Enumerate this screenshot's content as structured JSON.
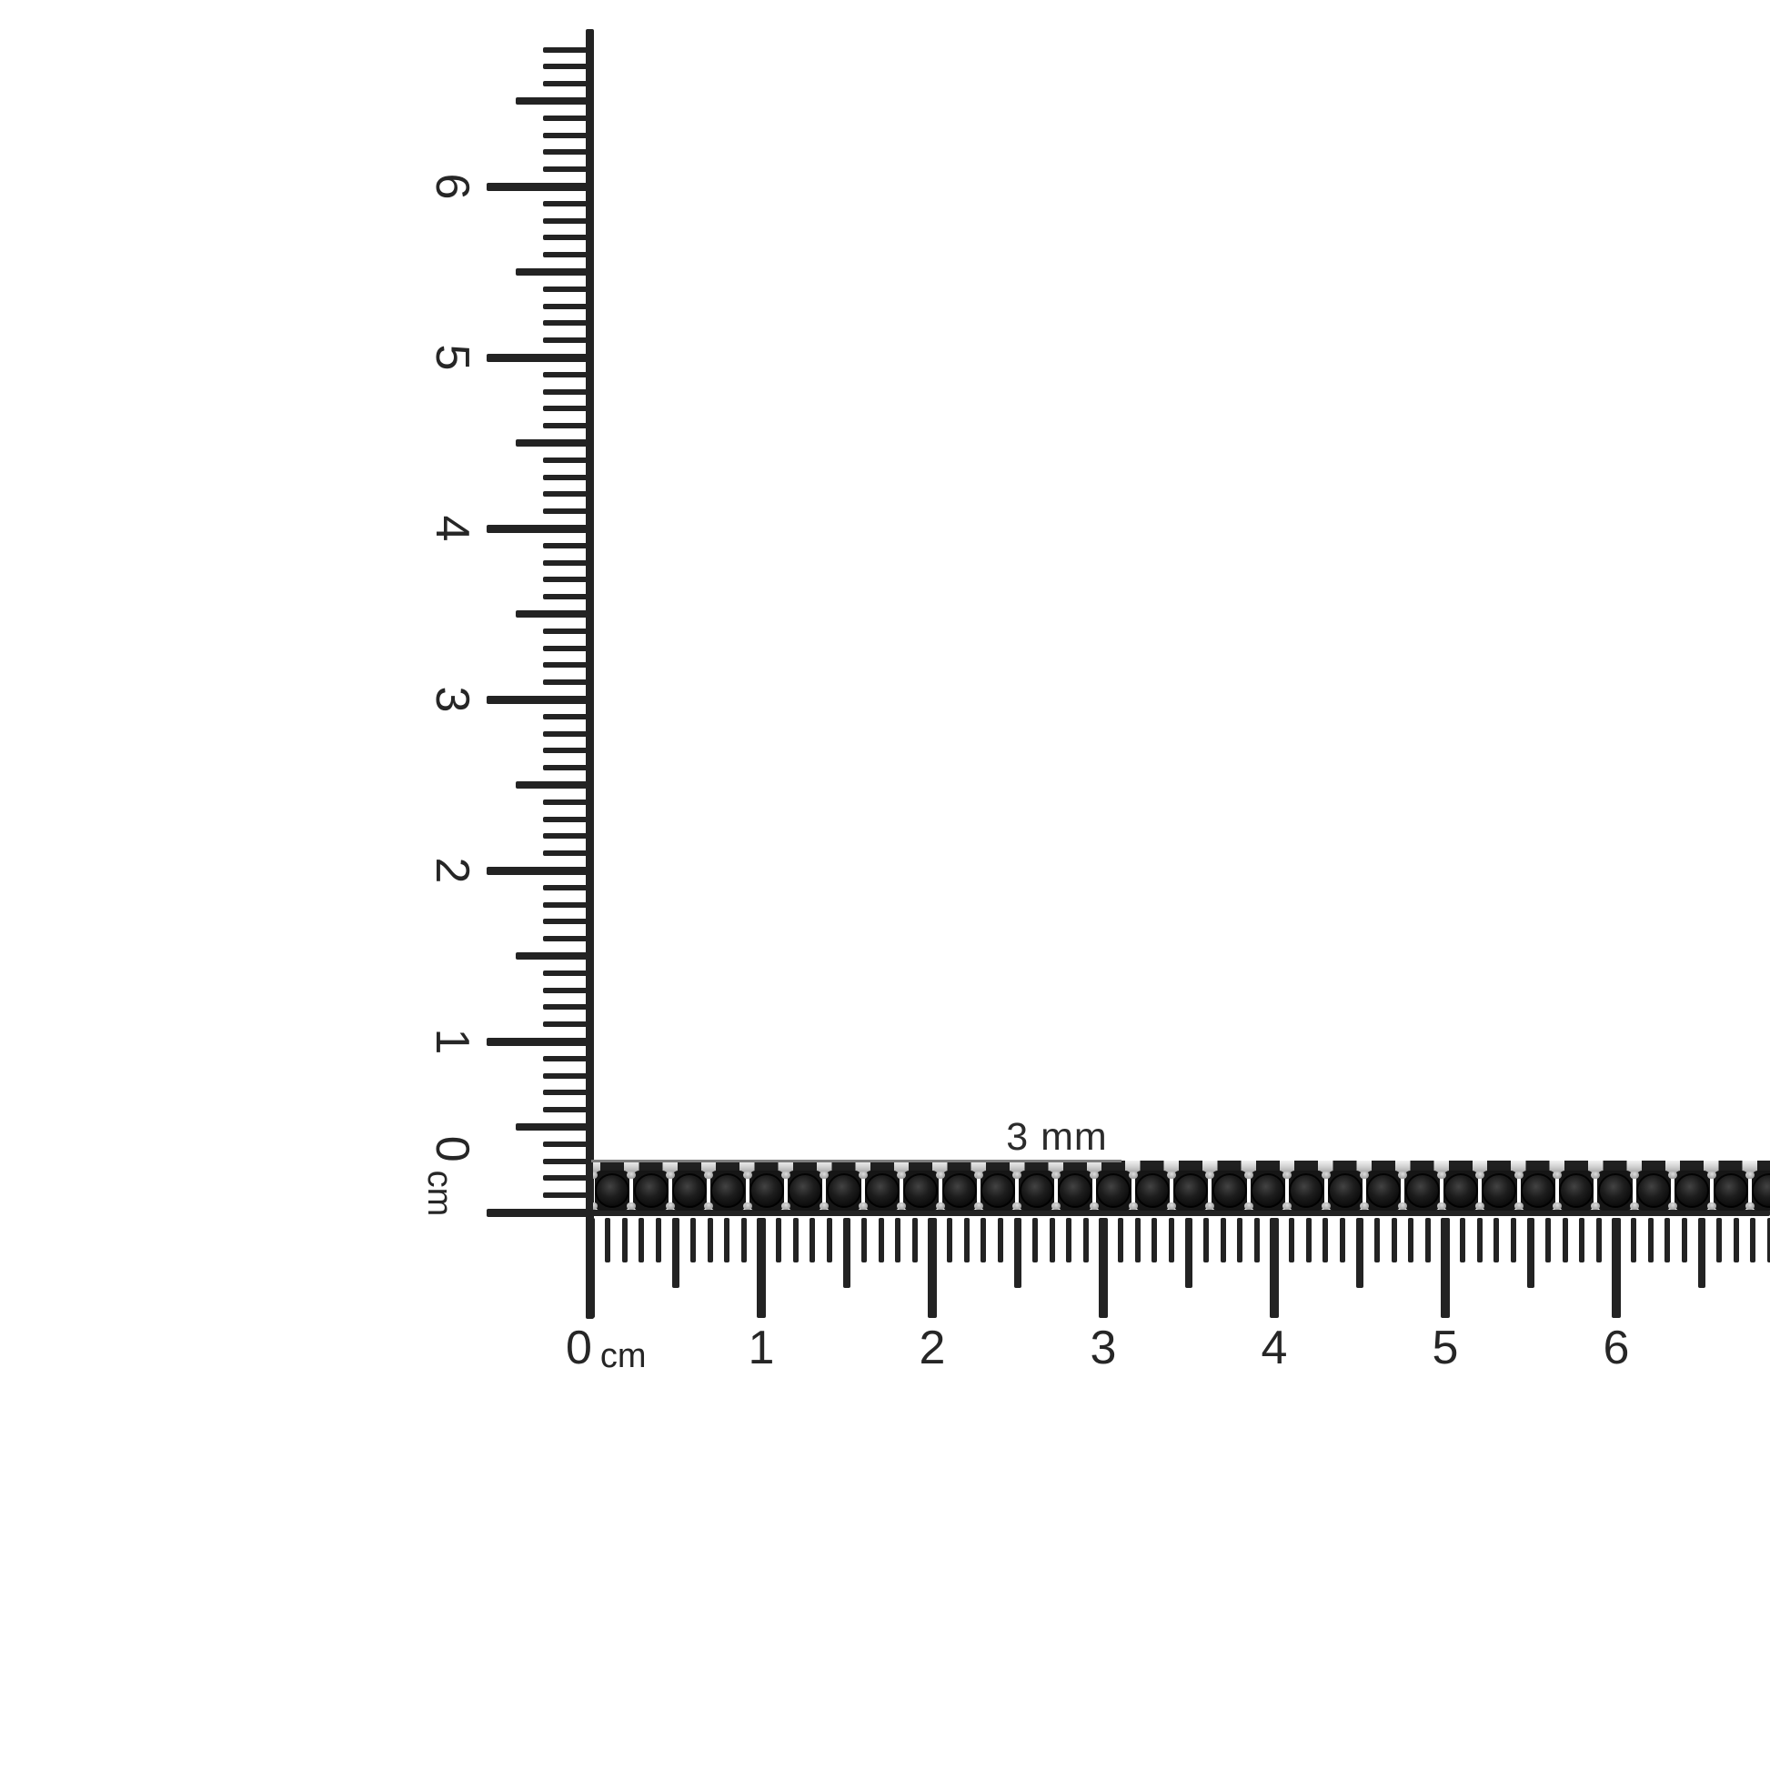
{
  "page": {
    "background_color": "#ffffff"
  },
  "size_label": {
    "text": "3 mm"
  },
  "horizontal_ruler": {
    "unit": "cm",
    "labels": [
      "0",
      "1",
      "2",
      "3",
      "4",
      "5",
      "6"
    ],
    "ink_color": "#232323"
  },
  "vertical_ruler": {
    "unit": "cm",
    "labels": [
      "0",
      "1",
      "2",
      "3",
      "4",
      "5",
      "6"
    ],
    "ink_color": "#232323"
  },
  "bracelet": {
    "stone_count": 31,
    "stone_color": "#0a0a0a",
    "stone_highlight": "#434343",
    "setting_color": "#161616",
    "metal_color": "#cfcfcf",
    "prong_color": "#a3a3a3",
    "indicator_line_color": "#7d7d7d"
  }
}
